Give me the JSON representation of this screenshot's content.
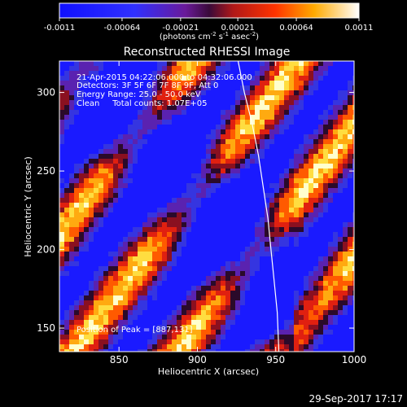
{
  "chart_data": {
    "type": "heatmap",
    "title": "Reconstructed RHESSI Image",
    "xlabel": "Heliocentric X (arcsec)",
    "ylabel": "Heliocentric Y (arcsec)",
    "xlim": [
      812,
      1000
    ],
    "ylim": [
      135,
      320
    ],
    "x_ticks": [
      850,
      900,
      950,
      1000
    ],
    "y_ticks": [
      150,
      200,
      250,
      300
    ],
    "x_tick_labels": [
      "850",
      "900",
      "950",
      "1000"
    ],
    "y_tick_labels": [
      "150",
      "200",
      "250",
      "300"
    ],
    "colorbar": {
      "label_main": "(photons cm",
      "label_sup1": "-2",
      "label_mid1": " s",
      "label_sup2": "-1",
      "label_mid2": " asec",
      "label_sup3": "-2",
      "label_end": ")",
      "range": [
        -0.0011,
        0.0011
      ],
      "ticks": [
        -0.0011,
        -0.00064,
        -0.00021,
        0.00021,
        0.00064,
        0.0011
      ],
      "tick_labels": [
        "-0.0011",
        "-0.00064",
        "-0.00021",
        "0.00021",
        "0.00064",
        "0.0011"
      ]
    },
    "annotations": {
      "time": "21-Apr-2015 04:22:06.000 to 04:32:06.000",
      "detectors": "Detectors: 3F 5F 6F 7F 8F 9F, Att 0",
      "energy": "Energy Range: 25.0 - 50.0 keV",
      "clean": "Clean     Total counts: 1.07E+05",
      "peak": "Position of Peak = [887,131]"
    },
    "footer": "29-Sep-2017 17:17",
    "limb_curve": [
      [
        926,
        320
      ],
      [
        930,
        300
      ],
      [
        935,
        280
      ],
      [
        939,
        260
      ],
      [
        942,
        240
      ],
      [
        945,
        220
      ],
      [
        947,
        200
      ],
      [
        949,
        180
      ],
      [
        951,
        160
      ],
      [
        952,
        135
      ]
    ]
  }
}
